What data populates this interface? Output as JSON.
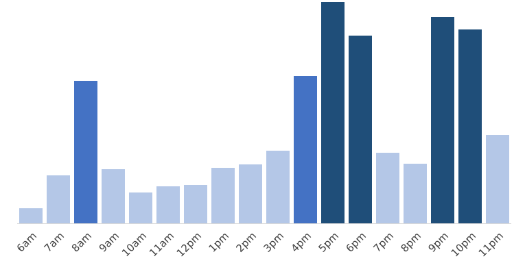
{
  "chart_data": {
    "type": "bar",
    "categories": [
      "6am",
      "7am",
      "8am",
      "9am",
      "10am",
      "11am",
      "12pm",
      "1pm",
      "2pm",
      "3pm",
      "4pm",
      "5pm",
      "6pm",
      "7pm",
      "8pm",
      "9pm",
      "10pm",
      "11pm"
    ],
    "values": [
      22,
      70,
      208,
      79,
      45,
      54,
      56,
      81,
      86,
      106,
      215,
      323,
      274,
      103,
      87,
      301,
      283,
      129
    ],
    "colors": [
      "#b4c7e7",
      "#b4c7e7",
      "#4472c4",
      "#b4c7e7",
      "#b4c7e7",
      "#b4c7e7",
      "#b4c7e7",
      "#b4c7e7",
      "#b4c7e7",
      "#b4c7e7",
      "#4472c4",
      "#1f4e79",
      "#1f4e79",
      "#b4c7e7",
      "#b4c7e7",
      "#1f4e79",
      "#1f4e79",
      "#b4c7e7"
    ],
    "ylim": [
      0,
      323
    ]
  }
}
